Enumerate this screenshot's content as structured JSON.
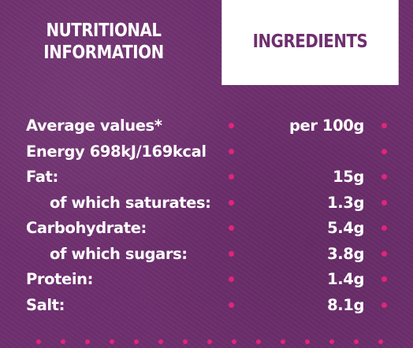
{
  "tabs": {
    "nutritional": "NUTRITIONAL\nINFORMATION",
    "ingredients": "INGREDIENTS"
  },
  "table": {
    "header": {
      "label": "Average values*",
      "value": "per 100g"
    },
    "rows": [
      {
        "label": "Energy 698kJ/169kcal",
        "value": ""
      },
      {
        "label": "Fat:",
        "value": "15g"
      },
      {
        "label": "of which saturates:",
        "value": "1.3g"
      },
      {
        "label": "Carbohydrate:",
        "value": "5.4g"
      },
      {
        "label": "of which sugars:",
        "value": "3.8g"
      },
      {
        "label": "Protein:",
        "value": "1.4g"
      },
      {
        "label": "Salt:",
        "value": "8.1g"
      }
    ]
  },
  "colors": {
    "background": "#6e2f6e",
    "accent_dots": "#e0257a",
    "text": "#ffffff"
  }
}
